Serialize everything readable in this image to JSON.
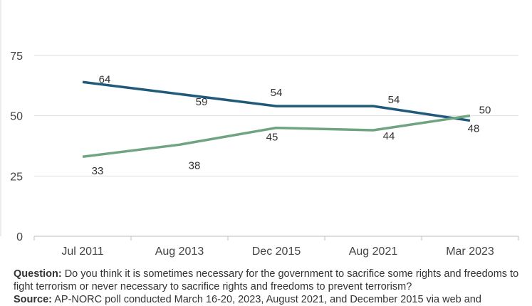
{
  "chart_data": {
    "type": "line",
    "title": "",
    "xlabel": "",
    "ylabel": "",
    "categories": [
      "Jul 2011",
      "Aug 2013",
      "Dec 2015",
      "Aug 2021",
      "Mar 2023"
    ],
    "ylim": [
      0,
      75
    ],
    "yticks": [
      0,
      25,
      50,
      75
    ],
    "grid": true,
    "legend": "none",
    "series": [
      {
        "name": "",
        "color": "#1f5a7a",
        "values": [
          64,
          59,
          54,
          54,
          48
        ]
      },
      {
        "name": "",
        "color": "#6fa482",
        "values": [
          33,
          38,
          45,
          44,
          50
        ]
      }
    ]
  },
  "notes": {
    "question_label": "Question:",
    "question_text": " Do you think it is sometimes necessary for the government to sacrifice some rights and freedoms to fight terrorism or never necessary to sacrifice rights and freedoms to prevent terrorism?",
    "source_label": "Source:",
    "source_text": " AP-NORC poll conducted March 16-20, 2023, August 2021, and December 2015 via web and"
  }
}
